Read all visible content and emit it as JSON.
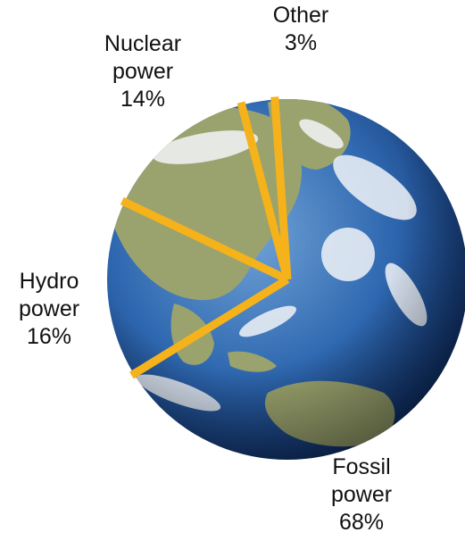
{
  "chart_data": {
    "type": "pie",
    "categories": [
      "Other",
      "Nuclear power",
      "Hydro power",
      "Fossil power"
    ],
    "values": [
      3,
      14,
      16,
      68
    ],
    "unit": "%",
    "labels": [
      {
        "lines": [
          "Other",
          "3%"
        ]
      },
      {
        "lines": [
          "Nuclear",
          "power",
          "14%"
        ]
      },
      {
        "lines": [
          "Hydro",
          "power",
          "16%"
        ]
      },
      {
        "lines": [
          "Fossil",
          "power",
          "68%"
        ]
      }
    ],
    "colors": {
      "divider": "#f5b21a",
      "ocean_dark": "#0c2b63",
      "ocean_mid": "#2f68b0",
      "ocean_light": "#6fa2d6",
      "land": "#9aa36e",
      "cloud": "#f2f5f8"
    },
    "background_image": "earth-globe"
  }
}
